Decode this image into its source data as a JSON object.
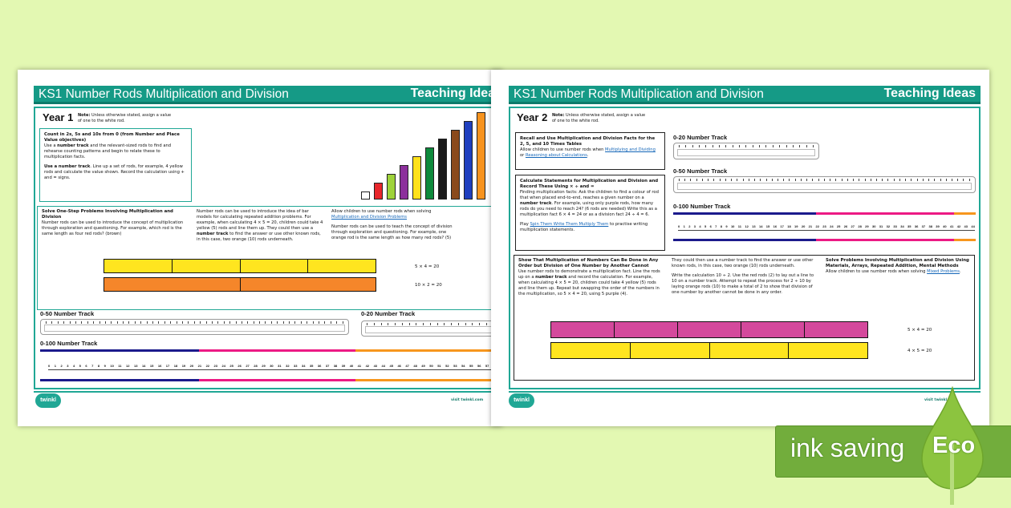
{
  "doc_title": "KS1 Number Rods Multiplication and Division",
  "header_right": "Teaching Ideas",
  "note_label": "Note:",
  "note_text": "Unless otherwise stated, assign a value of one to the white rod.",
  "footer_visit": "visit twinkl.com",
  "logo_text": "twinkl",
  "page1": {
    "year": "Year 1",
    "count_box": {
      "heading": "Count in 2s, 5s and 10s from 0 (from Number and Place Value objectives)",
      "p1_a": "Use a ",
      "p1_bold": "number track",
      "p1_b": " and the relevant-sized rods to find and rehearse counting patterns and begin to relate these to multiplication facts.",
      "p2_bold": "Use a number track",
      "p2_b": ". Line up a set of rods, for example, 4 yellow rods and calculate the value shown. Record the calculation using + and = signs."
    },
    "stair_colors": [
      "#ffffff",
      "#e8262b",
      "#9ed33a",
      "#8c2f9c",
      "#ffe11a",
      "#0e8a3c",
      "#1a1a1a",
      "#8a4a1c",
      "#1f3fbf",
      "#f7931e"
    ],
    "solve_box": {
      "heading": "Solve One-Step Problems Involving Multiplication and Division",
      "col1": "Number rods can be used to introduce the concept of multiplication through exploration and questioning. For example, which rod is the same length as four red rods? (brown)",
      "col2_a": "Number rods can be used to introduce the idea of bar models for calculating repeated addition problems. For example, when calculating 4 × 5 = 20, children could take 4 yellow (5) rods and line them up. They could then use a ",
      "col2_bold": "number track",
      "col2_b": " to find the answer or use other known rods, in this case, two orange (10) rods underneath.",
      "col3_a": "Allow children to use number rods when solving ",
      "col3_link": "Multiplication and Division Problems",
      "col3_b": "Number rods can be used to teach the concept of division through exploration and questioning. For example, one orange rod is the same length as how many red rods? (5)",
      "eq1": "5 × 4 = 20",
      "eq2": "10 × 2 = 20"
    },
    "track50": "0-50 Number Track",
    "track20": "0-20 Number Track",
    "track100": "0-100 Number Track",
    "track100_max_shown": 60
  },
  "page2": {
    "year": "Year 2",
    "recall_box": {
      "heading": "Recall and Use Multiplication and Division Facts for the 2, 5, and 10 Times Tables",
      "a": "Allow children to use number rods when ",
      "link1": "Multiplying and Dividing",
      "or": " or ",
      "link2": "Reasoning about Calculations",
      "end": "."
    },
    "calc_box": {
      "heading": "Calculate Statements for Multiplication and Division and Record These Using × ÷ and =",
      "a": "Finding multiplication facts: Ask the children to find a colour of rod that when placed end-to-end, reaches a given number on a ",
      "bold": "number track",
      "b": ". For example, using only purple rods, how many rods do you need to reach 24? (6 rods are needed) Write this as a multiplication fact 6 × 4 = 24 or as a division fact 24 ÷ 4 = 6.",
      "play": "Play ",
      "link": "Spin Them Write Them Multiply Them",
      "play_end": " to practise writing multiplication statements."
    },
    "track20": "0-20 Number Track",
    "track50": "0-50 Number Track",
    "track100": "0-100 Number Track",
    "track100_max_shown": 44,
    "order_box": {
      "heading1": "Show That Multiplication of Numbers Can Be Done in Any Order but Division of One Number by Another Cannot",
      "col1_a": "Use number rods to demonstrate a multiplication fact. Line the rods up on a ",
      "col1_bold": "number track",
      "col1_b": " and record the calculation. For example, when calculating 4 × 5 = 20, children could take 4 yellow (5) rods and line them up. Repeat but swapping the order of the numbers in the multiplication, so 5 × 4 = 20, using 5 purple (4).",
      "col2_p1": "They could then use a number track to find the answer or use other known rods, in this case, two orange (10) rods underneath.",
      "col2_p2": "Write the calculation 10 ÷ 2. Use the red rods (2) to lay out a line to 10 on a number track. Attempt to repeat the process for 2 ÷ 10 by laying orange rods (10) to make a total of 2 to show that division of one number by another cannot be done in any order.",
      "heading3": "Solve Problems Involving Multiplication and Division Using Materials, Arrays, Repeated Addition, Mental Methods",
      "col3_a": "Allow children to use number rods when solving ",
      "col3_link": "Mixed Problems",
      "col3_end": ".",
      "eq1": "5 × 4 = 20",
      "eq2": "4 × 5 = 20"
    }
  },
  "eco": {
    "ink_saving": "ink saving",
    "eco": "Eco"
  },
  "colors": {
    "teal": "#159a86",
    "navy": "#1b1a8c",
    "pink": "#ec1a84",
    "orange": "#f7961d",
    "yellow": "#ffe51f",
    "rod_orange": "#f5862a",
    "rod_pink": "#d4499c",
    "eco_green": "#72ad3c"
  }
}
